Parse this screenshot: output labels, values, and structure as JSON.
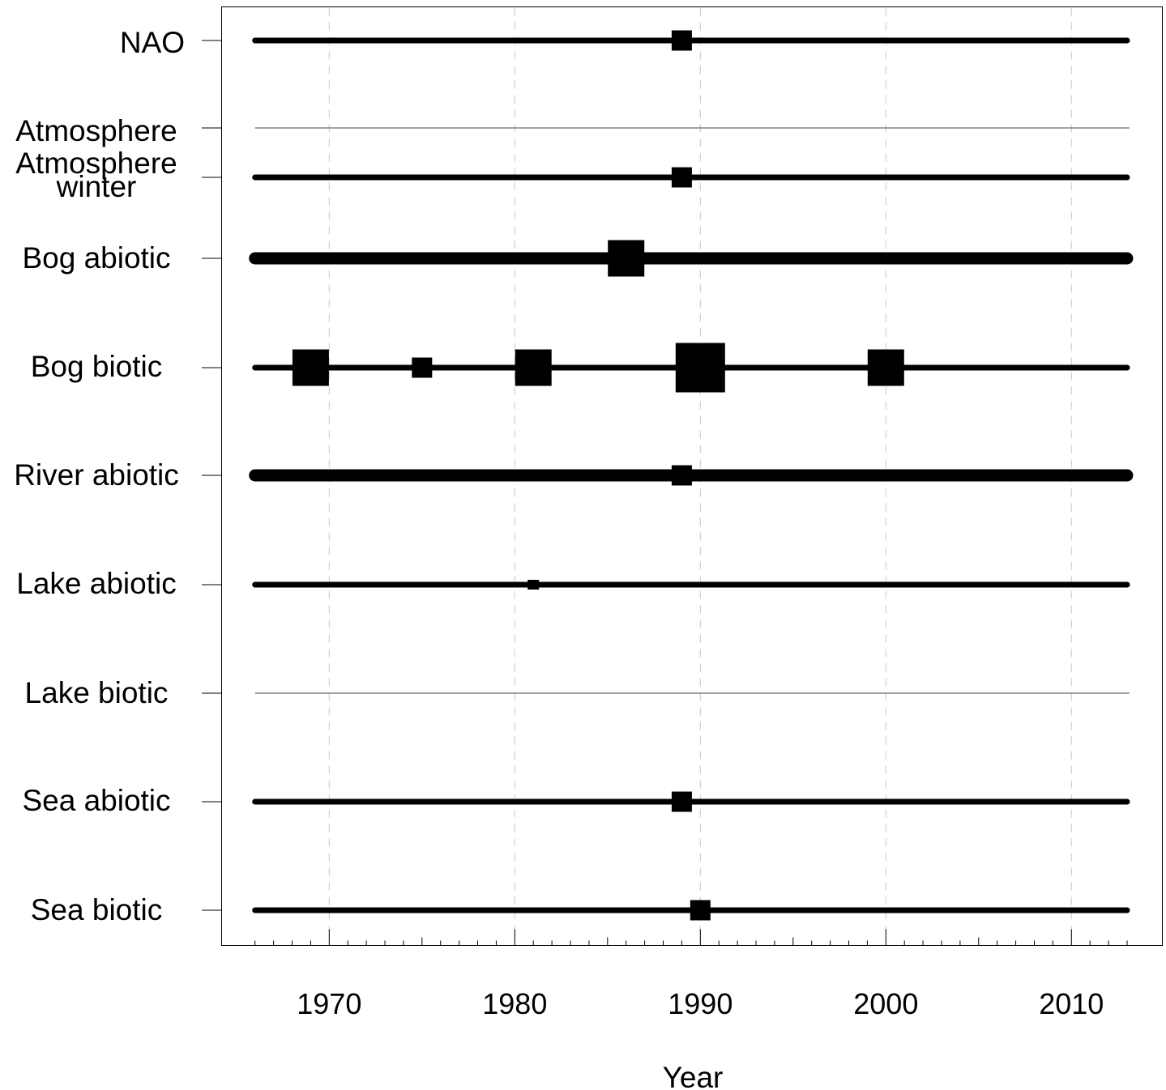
{
  "chart_data": {
    "type": "timeline",
    "title": "",
    "xlabel": "Year",
    "ylabel": "",
    "xlim": [
      1964.2,
      2014.9
    ],
    "x_ticks": [
      1970,
      1980,
      1990,
      2000,
      2010
    ],
    "x_range": [
      1966,
      2013
    ],
    "grid": "dashed vertical lines at major year ticks",
    "legend": "none",
    "rows": [
      {
        "label": [
          "NAO"
        ],
        "line": "medium",
        "breaks": [
          {
            "year": 1989,
            "size": "small"
          }
        ]
      },
      {
        "label": [
          "Atmosphere"
        ],
        "line": "thin",
        "breaks": []
      },
      {
        "label": [
          "Atmosphere",
          "winter"
        ],
        "line": "medium",
        "breaks": [
          {
            "year": 1989,
            "size": "small"
          }
        ]
      },
      {
        "label": [
          "Bog abiotic"
        ],
        "line": "thick",
        "breaks": [
          {
            "year": 1986,
            "size": "medium"
          }
        ]
      },
      {
        "label": [
          "Bog biotic"
        ],
        "line": "medium",
        "breaks": [
          {
            "year": 1969,
            "size": "medium"
          },
          {
            "year": 1975,
            "size": "small"
          },
          {
            "year": 1981,
            "size": "medium"
          },
          {
            "year": 1990,
            "size": "large"
          },
          {
            "year": 2000,
            "size": "medium"
          }
        ]
      },
      {
        "label": [
          "River abiotic"
        ],
        "line": "thick",
        "breaks": [
          {
            "year": 1989,
            "size": "small"
          }
        ]
      },
      {
        "label": [
          "Lake abiotic"
        ],
        "line": "medium",
        "breaks": [
          {
            "year": 1981,
            "size": "tiny"
          }
        ]
      },
      {
        "label": [
          "Lake biotic"
        ],
        "line": "thin",
        "breaks": []
      },
      {
        "label": [
          "Sea abiotic"
        ],
        "line": "medium",
        "breaks": [
          {
            "year": 1989,
            "size": "small"
          }
        ]
      },
      {
        "label": [
          "Sea biotic"
        ],
        "line": "medium",
        "breaks": [
          {
            "year": 1990,
            "size": "small"
          }
        ]
      }
    ]
  }
}
